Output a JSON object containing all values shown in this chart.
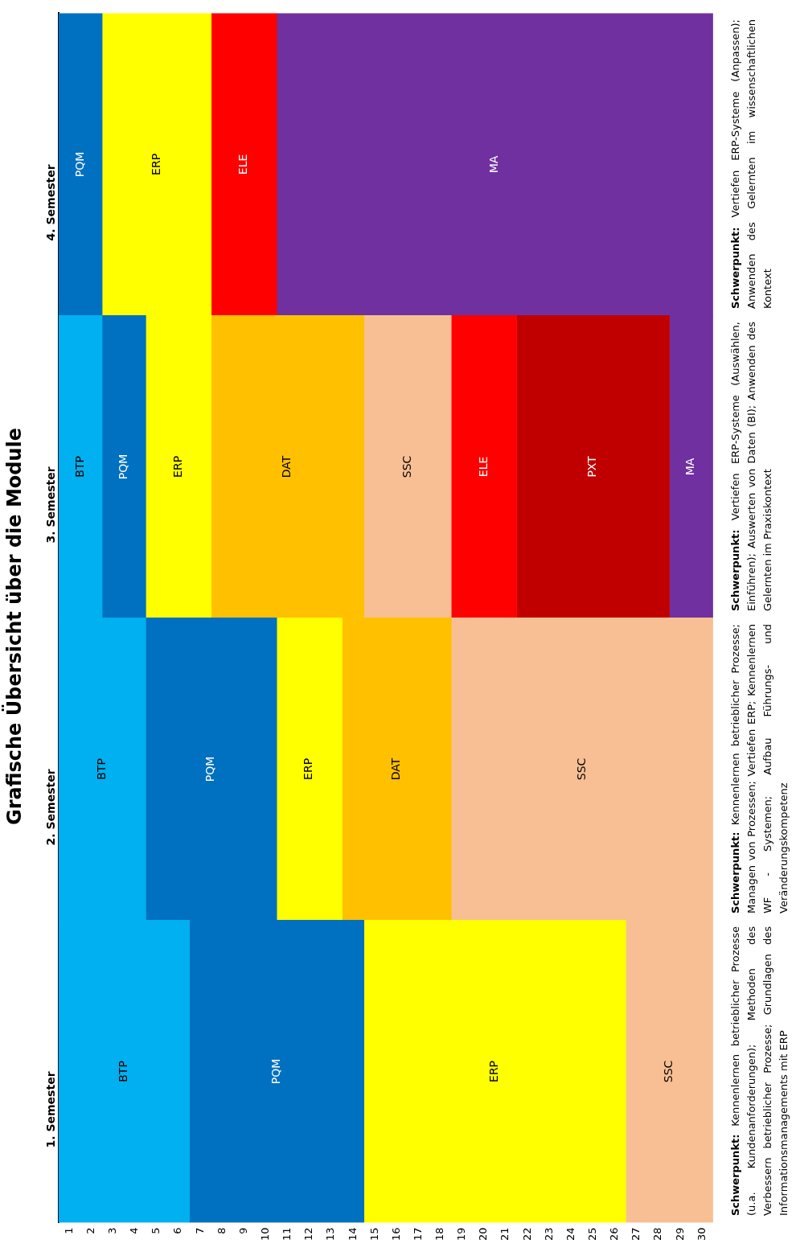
{
  "chart_data": {
    "type": "bar",
    "stacked": true,
    "orientation": "horizontal",
    "title": "Grafische Übersicht über die Module",
    "categories": [
      "4. Semester",
      "3. Semester",
      "2. Semester",
      "1. Semester"
    ],
    "series": [
      {
        "name": "BTP",
        "color": "#00b0f0",
        "values": [
          null,
          2,
          4,
          6
        ]
      },
      {
        "name": "PQM",
        "color": "#0070c0",
        "values": [
          2,
          2,
          6,
          8
        ]
      },
      {
        "name": "ERP",
        "color": "#ffff00",
        "values": [
          5,
          3,
          3,
          12
        ]
      },
      {
        "name": "DAT",
        "color": "#ffc000",
        "values": [
          null,
          7,
          5,
          null
        ]
      },
      {
        "name": "SSC",
        "color": "#f8bf94",
        "values": [
          null,
          4,
          12,
          4
        ]
      },
      {
        "name": "ELE",
        "color": "#ff0000",
        "values": [
          3,
          3,
          null,
          null
        ]
      },
      {
        "name": "PXT",
        "color": "#c00000",
        "values": [
          null,
          7,
          null,
          null
        ]
      },
      {
        "name": "MA",
        "color": "#7030a0",
        "values": [
          20,
          2,
          null,
          null
        ]
      }
    ],
    "xlim": [
      0,
      30
    ],
    "xticks": [
      {
        "value": 0.5,
        "label": "1"
      },
      {
        "value": 1.5,
        "label": "2"
      },
      {
        "value": 2.5,
        "label": "3"
      },
      {
        "value": 3.5,
        "label": "4"
      },
      {
        "value": 4.5,
        "label": "5"
      },
      {
        "value": 5.5,
        "label": "6"
      },
      {
        "value": 6.5,
        "label": "7"
      },
      {
        "value": 7.5,
        "label": "8"
      },
      {
        "value": 8.5,
        "label": "9"
      },
      {
        "value": 9.5,
        "label": "10"
      },
      {
        "value": 10.5,
        "label": "11"
      },
      {
        "value": 11.5,
        "label": "12"
      },
      {
        "value": 12.5,
        "label": "13"
      },
      {
        "value": 13.5,
        "label": "14"
      },
      {
        "value": 14.5,
        "label": "15"
      },
      {
        "value": 15.5,
        "label": "16"
      },
      {
        "value": 16.5,
        "label": "17"
      },
      {
        "value": 17.5,
        "label": "18"
      },
      {
        "value": 18.5,
        "label": "19"
      },
      {
        "value": 19.5,
        "label": "20"
      },
      {
        "value": 20.5,
        "label": "21"
      },
      {
        "value": 21.5,
        "label": "22"
      },
      {
        "value": 22.5,
        "label": "23"
      },
      {
        "value": 23.5,
        "label": "24"
      },
      {
        "value": 24.5,
        "label": "25"
      },
      {
        "value": 25.5,
        "label": "26"
      },
      {
        "value": 26.5,
        "label": "27"
      },
      {
        "value": 27.5,
        "label": "28"
      },
      {
        "value": 28.5,
        "label": "29"
      },
      {
        "value": 29.5,
        "label": "30"
      }
    ],
    "grid": false,
    "legend": false,
    "annotations": [
      "Schwerpunkt: Vertiefen ERP-Systeme (Anpassen); Anwenden des Gelernten im wissenschaftlichen Kontext",
      "Schwerpunkt: Vertiefen ERP-Systeme (Auswählen, Einführen); Auswerten von Daten (BI); Anwenden des Gelernten im Praxiskontext",
      "Schwerpunkt: Kennenlernen betrieblicher Prozesse; Managen von Prozessen; Vertiefen ERP; Kennenlernen WF - Systemen; Aufbau Führungs- und Veränderungskompetenz",
      "Schwerpunkt: Kennenlernen betrieblicher Prozesse (u.a. Kundenanforderungen); Methoden des Verbessern betrieblicher Prozesse; Grundlagen des Informationsmanagements mit ERP"
    ]
  }
}
